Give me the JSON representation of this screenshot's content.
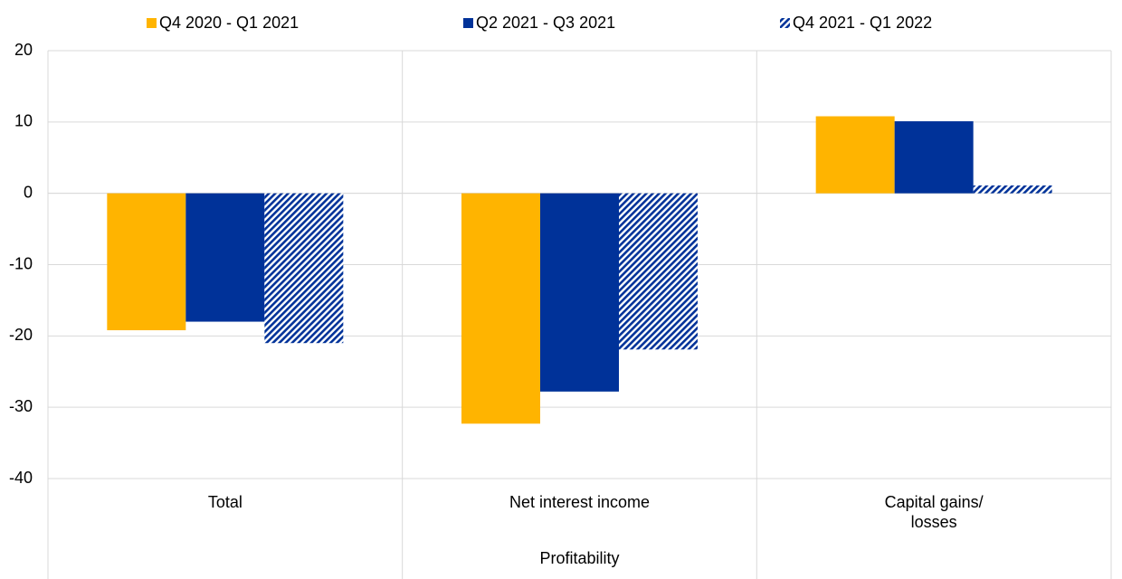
{
  "chart_data": {
    "type": "bar",
    "categories": [
      "Total",
      "Net interest income",
      "Capital gains/\nlosses"
    ],
    "group_label": "Profitability",
    "series": [
      {
        "name": "Q4 2020 - Q1 2021",
        "color": "#ffb400",
        "values": [
          -19.2,
          -32.3,
          10.8
        ]
      },
      {
        "name": "Q2 2021 - Q3 2021",
        "color": "#003299",
        "values": [
          -18,
          -27.8,
          10.1
        ]
      },
      {
        "name": "Q4 2021 - Q1 2022",
        "color": "#003299",
        "hatch": true,
        "values": [
          -21,
          -21.9,
          1.1
        ]
      }
    ],
    "ylim": [
      -40,
      20
    ],
    "yticks": [
      -40,
      -30,
      -20,
      -10,
      0,
      10,
      20
    ],
    "grid": true,
    "legend": "top"
  }
}
